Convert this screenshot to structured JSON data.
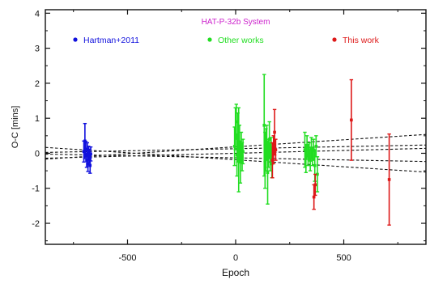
{
  "chart_data": {
    "type": "scatter",
    "title": "HAT-P-32b System",
    "xlabel": "Epoch",
    "ylabel": "O-C [mins]",
    "xlim": [
      -880,
      880
    ],
    "ylim": [
      -2.6,
      4.1
    ],
    "x_ticks": [
      -500,
      0,
      500
    ],
    "y_ticks": [
      -2,
      -1,
      0,
      1,
      2,
      3,
      4
    ],
    "x_tick_labels": [
      "-500",
      "0",
      "500"
    ],
    "y_tick_labels": [
      "-2",
      "-1",
      "0",
      "1",
      "2",
      "3",
      "4"
    ],
    "grid": false,
    "legend": "top",
    "series": [
      {
        "name": "Hartman+2011",
        "color": "#1010dd",
        "points": [
          {
            "x": -702,
            "y": 0.05,
            "err": 0.3
          },
          {
            "x": -697,
            "y": 0.35,
            "err": 0.5
          },
          {
            "x": -693,
            "y": 0.12,
            "err": 0.22
          },
          {
            "x": -689,
            "y": -0.2,
            "err": 0.2
          },
          {
            "x": -686,
            "y": 0.1,
            "err": 0.2
          },
          {
            "x": -683,
            "y": -0.3,
            "err": 0.22
          },
          {
            "x": -680,
            "y": 0.0,
            "err": 0.2
          },
          {
            "x": -677,
            "y": -0.08,
            "err": 0.2
          },
          {
            "x": -673,
            "y": -0.35,
            "err": 0.22
          },
          {
            "x": -670,
            "y": -0.02,
            "err": 0.2
          }
        ]
      },
      {
        "name": "Other works",
        "color": "#22dd22",
        "points": [
          {
            "x": -5,
            "y": 0.2,
            "err": 0.55
          },
          {
            "x": -1,
            "y": 0.7,
            "err": 0.6
          },
          {
            "x": 3,
            "y": 0.9,
            "err": 0.5
          },
          {
            "x": 6,
            "y": -0.05,
            "err": 0.6
          },
          {
            "x": 10,
            "y": 0.45,
            "err": 0.7
          },
          {
            "x": 14,
            "y": 0.1,
            "err": 1.2
          },
          {
            "x": 18,
            "y": 0.3,
            "err": 0.5
          },
          {
            "x": 22,
            "y": -0.25,
            "err": 0.6
          },
          {
            "x": 26,
            "y": 0.2,
            "err": 0.4
          },
          {
            "x": 30,
            "y": -0.1,
            "err": 0.4
          },
          {
            "x": 34,
            "y": 0.05,
            "err": 0.35
          },
          {
            "x": 132,
            "y": 0.8,
            "err": 1.45
          },
          {
            "x": 136,
            "y": -0.2,
            "err": 0.8
          },
          {
            "x": 140,
            "y": 0.1,
            "err": 0.6
          },
          {
            "x": 144,
            "y": 0.3,
            "err": 0.5
          },
          {
            "x": 148,
            "y": -0.55,
            "err": 0.9
          },
          {
            "x": 152,
            "y": 0.0,
            "err": 0.4
          },
          {
            "x": 156,
            "y": 0.4,
            "err": 0.5
          },
          {
            "x": 160,
            "y": -0.1,
            "err": 0.4
          },
          {
            "x": 164,
            "y": 0.15,
            "err": 0.3
          },
          {
            "x": 168,
            "y": -0.3,
            "err": 0.4
          },
          {
            "x": 320,
            "y": 0.1,
            "err": 0.5
          },
          {
            "x": 325,
            "y": -0.15,
            "err": 0.4
          },
          {
            "x": 330,
            "y": 0.2,
            "err": 0.3
          },
          {
            "x": 335,
            "y": -0.05,
            "err": 0.3
          },
          {
            "x": 340,
            "y": 0.05,
            "err": 0.25
          },
          {
            "x": 345,
            "y": -0.2,
            "err": 0.3
          },
          {
            "x": 350,
            "y": 0.15,
            "err": 0.3
          },
          {
            "x": 355,
            "y": -0.1,
            "err": 0.25
          },
          {
            "x": 360,
            "y": 0.1,
            "err": 0.3
          },
          {
            "x": 366,
            "y": -0.35,
            "err": 0.45
          },
          {
            "x": 372,
            "y": 0.2,
            "err": 0.3
          },
          {
            "x": 378,
            "y": -0.6,
            "err": 0.5
          }
        ]
      },
      {
        "name": "This work",
        "color": "#dd1818",
        "points": [
          {
            "x": 170,
            "y": -0.2,
            "err": 0.5
          },
          {
            "x": 175,
            "y": 0.1,
            "err": 0.4
          },
          {
            "x": 180,
            "y": 0.6,
            "err": 0.65
          },
          {
            "x": 185,
            "y": 0.1,
            "err": 0.3
          },
          {
            "x": 362,
            "y": -1.25,
            "err": 0.35
          },
          {
            "x": 368,
            "y": -0.9,
            "err": 0.3
          },
          {
            "x": 535,
            "y": 0.95,
            "err": 1.15
          },
          {
            "x": 710,
            "y": -0.75,
            "err": 1.3
          }
        ]
      }
    ],
    "fit_lines": [
      {
        "slope": 0.00016,
        "intercept": 0.0,
        "style": "dashed"
      },
      {
        "slope": 0.00012,
        "intercept": 0.13,
        "style": "dashed"
      },
      {
        "slope": -0.00012,
        "intercept": -0.13,
        "style": "dashed"
      },
      {
        "slope": 0.0004,
        "intercept": 0.185,
        "style": "dashed"
      },
      {
        "slope": -0.0004,
        "intercept": -0.185,
        "style": "dashed"
      }
    ]
  }
}
